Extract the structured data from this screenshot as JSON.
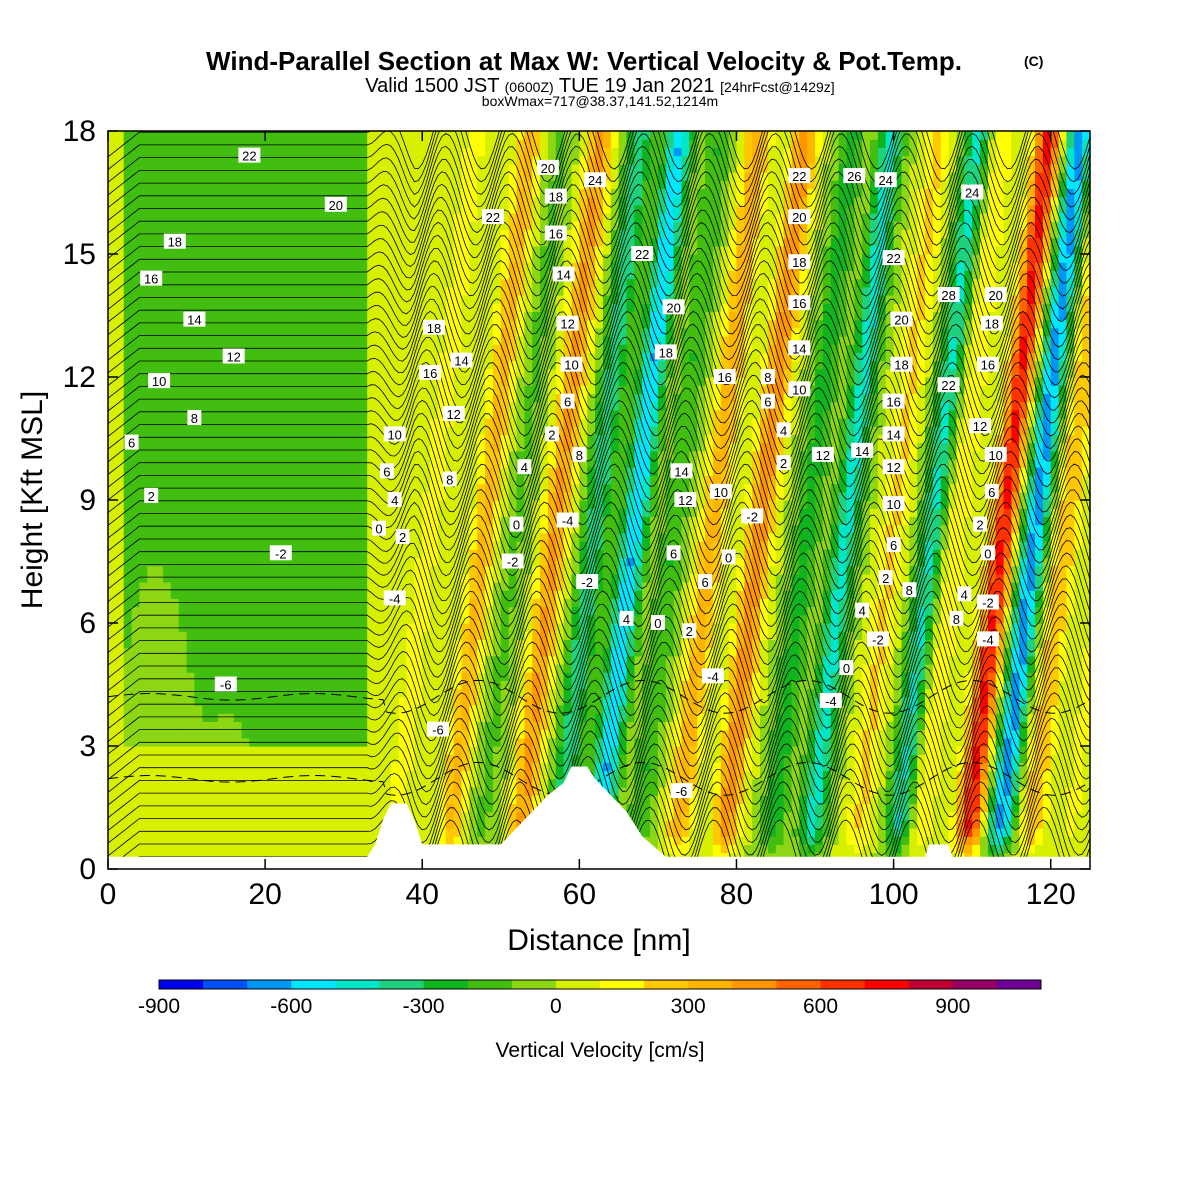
{
  "title": {
    "main": "Wind-Parallel Section at Max W: Vertical Velocity & Pot.Temp.",
    "copyright": "(C)",
    "valid_prefix": "Valid 1500 JST",
    "valid_utc": "(0600Z)",
    "valid_date": "TUE 19 Jan 2021",
    "forecast": "[24hrFcst@1429z]",
    "boxwmax": "boxWmax=717@38.37,141.52,1214m"
  },
  "chart_data": {
    "type": "heatmap",
    "xlabel": "Distance [nm]",
    "ylabel": "Height [Kft MSL]",
    "xlim": [
      0,
      125
    ],
    "ylim": [
      0,
      18
    ],
    "x_ticks": [
      0,
      20,
      40,
      60,
      80,
      100,
      120
    ],
    "y_ticks": [
      0,
      3,
      6,
      9,
      12,
      15,
      18
    ],
    "fill_variable": "Vertical Velocity [cm/s]",
    "contour_variable": "Pot.Temp.",
    "colorbar": {
      "label": "Vertical Velocity [cm/s]",
      "tick_labels": [
        "-900",
        "-600",
        "-300",
        "0",
        "300",
        "600",
        "900"
      ],
      "tick_values": [
        -900,
        -600,
        -300,
        0,
        300,
        600,
        900
      ],
      "min": -900,
      "max": 1100,
      "step": 100,
      "colors": [
        "#0000f0",
        "#0050f5",
        "#0096f5",
        "#00e6ff",
        "#00e6c8",
        "#1ed27d",
        "#10b41e",
        "#41be10",
        "#8cd614",
        "#d7f000",
        "#ffff00",
        "#ffc800",
        "#ffb400",
        "#ff9600",
        "#ff6400",
        "#ff3200",
        "#ff0000",
        "#be0032",
        "#960064",
        "#6e0096"
      ]
    },
    "wave_columns": [
      {
        "x": 36,
        "w": 150
      },
      {
        "x": 43,
        "w": 320
      },
      {
        "x": 47,
        "w": -120
      },
      {
        "x": 52,
        "w": 420
      },
      {
        "x": 57,
        "w": -380
      },
      {
        "x": 62,
        "w": -600
      },
      {
        "x": 67,
        "w": -200
      },
      {
        "x": 72,
        "w": 350
      },
      {
        "x": 78,
        "w": 480
      },
      {
        "x": 84,
        "w": -250
      },
      {
        "x": 89,
        "w": -450
      },
      {
        "x": 95,
        "w": 220
      },
      {
        "x": 100,
        "w": -420
      },
      {
        "x": 103,
        "w": 200
      },
      {
        "x": 109,
        "w": 717
      },
      {
        "x": 113,
        "w": -650
      },
      {
        "x": 117,
        "w": 300
      },
      {
        "x": 122,
        "w": 120
      }
    ],
    "terrain": [
      {
        "x": 0,
        "h": 0.3
      },
      {
        "x": 33,
        "h": 0.3
      },
      {
        "x": 34,
        "h": 0.6
      },
      {
        "x": 35,
        "h": 1.2
      },
      {
        "x": 36,
        "h": 1.6
      },
      {
        "x": 38,
        "h": 1.6
      },
      {
        "x": 39,
        "h": 1.2
      },
      {
        "x": 40,
        "h": 0.6
      },
      {
        "x": 50,
        "h": 0.6
      },
      {
        "x": 52,
        "h": 1.0
      },
      {
        "x": 54,
        "h": 1.4
      },
      {
        "x": 56,
        "h": 1.8
      },
      {
        "x": 58,
        "h": 2.1
      },
      {
        "x": 59,
        "h": 2.5
      },
      {
        "x": 61,
        "h": 2.5
      },
      {
        "x": 62,
        "h": 2.2
      },
      {
        "x": 64,
        "h": 1.8
      },
      {
        "x": 66,
        "h": 1.4
      },
      {
        "x": 68,
        "h": 0.8
      },
      {
        "x": 71,
        "h": 0.3
      },
      {
        "x": 104,
        "h": 0.3
      },
      {
        "x": 104.5,
        "h": 0.6
      },
      {
        "x": 107,
        "h": 0.6
      },
      {
        "x": 107.5,
        "h": 0.3
      },
      {
        "x": 125,
        "h": 0.3
      }
    ],
    "contour_labels": [
      {
        "text": "22",
        "x": 18,
        "y": 17.4
      },
      {
        "text": "20",
        "x": 29,
        "y": 16.2
      },
      {
        "text": "18",
        "x": 8.5,
        "y": 15.3
      },
      {
        "text": "16",
        "x": 5.5,
        "y": 14.4
      },
      {
        "text": "14",
        "x": 11,
        "y": 13.4
      },
      {
        "text": "12",
        "x": 16,
        "y": 12.5
      },
      {
        "text": "10",
        "x": 6.5,
        "y": 11.9
      },
      {
        "text": "8",
        "x": 11,
        "y": 11
      },
      {
        "text": "6",
        "x": 3,
        "y": 10.4
      },
      {
        "text": "2",
        "x": 5.5,
        "y": 9.1
      },
      {
        "text": "-2",
        "x": 22,
        "y": 7.7
      },
      {
        "text": "-6",
        "x": 15,
        "y": 4.5
      },
      {
        "text": "10",
        "x": 36.5,
        "y": 10.6
      },
      {
        "text": "6",
        "x": 35.5,
        "y": 9.7
      },
      {
        "text": "4",
        "x": 36.5,
        "y": 9.0
      },
      {
        "text": "0",
        "x": 34.5,
        "y": 8.3
      },
      {
        "text": "2",
        "x": 37.5,
        "y": 8.1
      },
      {
        "text": "-4",
        "x": 36.5,
        "y": 6.6
      },
      {
        "text": "-6",
        "x": 42,
        "y": 3.4
      },
      {
        "text": "18",
        "x": 41.5,
        "y": 13.2
      },
      {
        "text": "16",
        "x": 41,
        "y": 12.1
      },
      {
        "text": "14",
        "x": 45,
        "y": 12.4
      },
      {
        "text": "12",
        "x": 44,
        "y": 11.1
      },
      {
        "text": "8",
        "x": 43.5,
        "y": 9.5
      },
      {
        "text": "22",
        "x": 49,
        "y": 15.9
      },
      {
        "text": "20",
        "x": 56,
        "y": 17.1
      },
      {
        "text": "18",
        "x": 57,
        "y": 16.4
      },
      {
        "text": "16",
        "x": 57,
        "y": 15.5
      },
      {
        "text": "24",
        "x": 62,
        "y": 16.8
      },
      {
        "text": "14",
        "x": 58,
        "y": 14.5
      },
      {
        "text": "12",
        "x": 58.5,
        "y": 13.3
      },
      {
        "text": "10",
        "x": 59,
        "y": 12.3
      },
      {
        "text": "6",
        "x": 58.5,
        "y": 11.4
      },
      {
        "text": "2",
        "x": 56.5,
        "y": 10.6
      },
      {
        "text": "4",
        "x": 53,
        "y": 9.8
      },
      {
        "text": "0",
        "x": 52,
        "y": 8.4
      },
      {
        "text": "-2",
        "x": 51.5,
        "y": 7.5
      },
      {
        "text": "8",
        "x": 60,
        "y": 10.1
      },
      {
        "text": "-4",
        "x": 58.5,
        "y": 8.5
      },
      {
        "text": "-2",
        "x": 61,
        "y": 7.0
      },
      {
        "text": "4",
        "x": 66,
        "y": 6.1
      },
      {
        "text": "0",
        "x": 70,
        "y": 6.0
      },
      {
        "text": "2",
        "x": 74,
        "y": 5.8
      },
      {
        "text": "-4",
        "x": 77,
        "y": 4.7
      },
      {
        "text": "-6",
        "x": 73,
        "y": 1.9
      },
      {
        "text": "22",
        "x": 68,
        "y": 15.0
      },
      {
        "text": "20",
        "x": 72,
        "y": 13.7
      },
      {
        "text": "18",
        "x": 71,
        "y": 12.6
      },
      {
        "text": "14",
        "x": 73,
        "y": 9.7
      },
      {
        "text": "12",
        "x": 73.5,
        "y": 9.0
      },
      {
        "text": "6",
        "x": 72,
        "y": 7.7
      },
      {
        "text": "6",
        "x": 76,
        "y": 7.0
      },
      {
        "text": "16",
        "x": 78.5,
        "y": 12.0
      },
      {
        "text": "10",
        "x": 78,
        "y": 9.2
      },
      {
        "text": "0",
        "x": 79,
        "y": 7.6
      },
      {
        "text": "-2",
        "x": 82,
        "y": 8.6
      },
      {
        "text": "22",
        "x": 88,
        "y": 16.9
      },
      {
        "text": "20",
        "x": 88,
        "y": 15.9
      },
      {
        "text": "18",
        "x": 88,
        "y": 14.8
      },
      {
        "text": "16",
        "x": 88,
        "y": 13.8
      },
      {
        "text": "14",
        "x": 88,
        "y": 12.7
      },
      {
        "text": "8",
        "x": 84,
        "y": 12.0
      },
      {
        "text": "6",
        "x": 84,
        "y": 11.4
      },
      {
        "text": "10",
        "x": 88,
        "y": 11.7
      },
      {
        "text": "4",
        "x": 86,
        "y": 10.7
      },
      {
        "text": "2",
        "x": 86,
        "y": 9.9
      },
      {
        "text": "12",
        "x": 91,
        "y": 10.1
      },
      {
        "text": "26",
        "x": 95,
        "y": 16.9
      },
      {
        "text": "24",
        "x": 99,
        "y": 16.8
      },
      {
        "text": "22",
        "x": 100,
        "y": 14.9
      },
      {
        "text": "20",
        "x": 101,
        "y": 13.4
      },
      {
        "text": "18",
        "x": 101,
        "y": 12.3
      },
      {
        "text": "16",
        "x": 100,
        "y": 11.4
      },
      {
        "text": "14",
        "x": 100,
        "y": 10.6
      },
      {
        "text": "14",
        "x": 96,
        "y": 10.2
      },
      {
        "text": "12",
        "x": 100,
        "y": 9.8
      },
      {
        "text": "10",
        "x": 100,
        "y": 8.9
      },
      {
        "text": "6",
        "x": 100,
        "y": 7.9
      },
      {
        "text": "2",
        "x": 99,
        "y": 7.1
      },
      {
        "text": "8",
        "x": 102,
        "y": 6.8
      },
      {
        "text": "4",
        "x": 96,
        "y": 6.3
      },
      {
        "text": "-2",
        "x": 98,
        "y": 5.6
      },
      {
        "text": "0",
        "x": 94,
        "y": 4.9
      },
      {
        "text": "-4",
        "x": 92,
        "y": 4.1
      },
      {
        "text": "28",
        "x": 107,
        "y": 14.0
      },
      {
        "text": "24",
        "x": 110,
        "y": 16.5
      },
      {
        "text": "22",
        "x": 107,
        "y": 11.8
      },
      {
        "text": "20",
        "x": 113,
        "y": 14.0
      },
      {
        "text": "18",
        "x": 112.5,
        "y": 13.3
      },
      {
        "text": "16",
        "x": 112,
        "y": 12.3
      },
      {
        "text": "12",
        "x": 111,
        "y": 10.8
      },
      {
        "text": "10",
        "x": 113,
        "y": 10.1
      },
      {
        "text": "6",
        "x": 112.5,
        "y": 9.2
      },
      {
        "text": "2",
        "x": 111,
        "y": 8.4
      },
      {
        "text": "0",
        "x": 112,
        "y": 7.7
      },
      {
        "text": "8",
        "x": 108,
        "y": 6.1
      },
      {
        "text": "4",
        "x": 109,
        "y": 6.7
      },
      {
        "text": "-2",
        "x": 112,
        "y": 6.5
      },
      {
        "text": "-4",
        "x": 112,
        "y": 5.6
      }
    ]
  }
}
